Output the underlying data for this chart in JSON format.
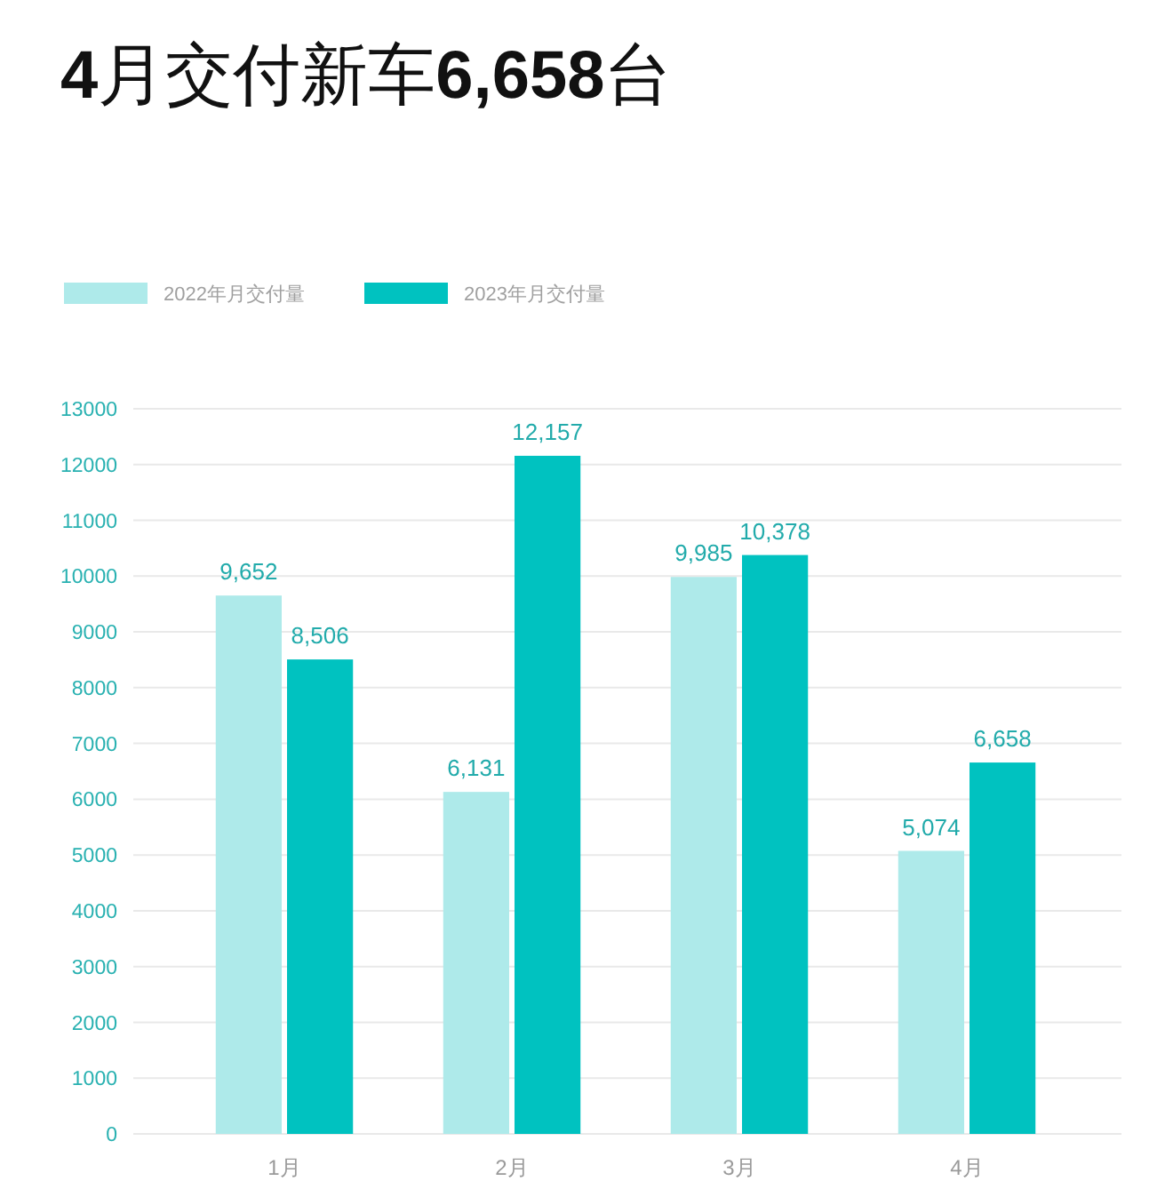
{
  "chart_data": {
    "type": "bar",
    "title": "4月交付新车6,658台",
    "categories": [
      "1月",
      "2月",
      "3月",
      "4月"
    ],
    "series": [
      {
        "name": "2022年月交付量",
        "color": "#aeeaea",
        "values": [
          9652,
          6131,
          9985,
          5074
        ],
        "value_labels": [
          "9,652",
          "6,131",
          "9,985",
          "5,074"
        ]
      },
      {
        "name": "2023年月交付量",
        "color": "#00c2c0",
        "values": [
          8506,
          12157,
          10378,
          6658
        ],
        "value_labels": [
          "8,506",
          "12,157",
          "10,378",
          "6,658"
        ]
      }
    ],
    "ylim": [
      0,
      13000
    ],
    "yticks": [
      0,
      1000,
      2000,
      3000,
      4000,
      5000,
      6000,
      7000,
      8000,
      9000,
      10000,
      11000,
      12000,
      13000
    ],
    "grid": "y",
    "legend": "top left"
  }
}
